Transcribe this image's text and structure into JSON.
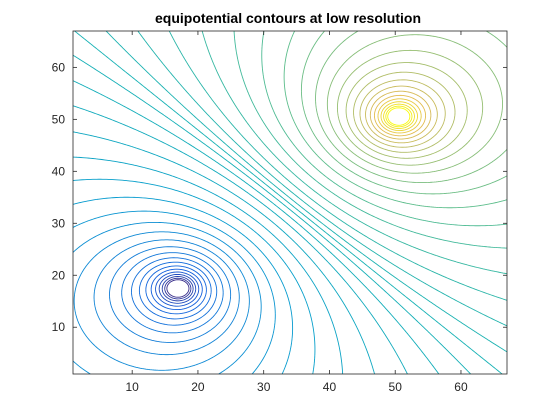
{
  "chart_data": {
    "type": "contour",
    "title": "equipotential contours at low resolution",
    "xlabel": "",
    "ylabel": "",
    "xlim": [
      1,
      67
    ],
    "ylim": [
      1,
      67
    ],
    "x_ticks": [
      10,
      20,
      30,
      40,
      50,
      60
    ],
    "y_ticks": [
      10,
      20,
      30,
      40,
      50,
      60
    ],
    "grid": false,
    "box": true,
    "colormap": "parula",
    "colors": {
      "low": "#1a2ad6",
      "mid": "#1aa6a6",
      "high": "#f9e30f",
      "axes": "#262626"
    },
    "charges": [
      {
        "sign": "negative",
        "x": 17,
        "y": 17.5,
        "strength": -1
      },
      {
        "sign": "positive",
        "x": 50.5,
        "y": 50.5,
        "strength": 1
      }
    ],
    "zero_contour": {
      "from": [
        1,
        67
      ],
      "to": [
        67,
        1
      ]
    },
    "contour_levels": [
      0.008,
      0.018,
      0.03,
      0.045,
      0.062,
      0.08,
      0.1,
      0.12,
      0.14,
      0.16,
      0.18,
      0.2,
      0.22,
      0.24,
      0.26,
      0.28,
      0.3,
      0.32,
      0.34,
      0.36,
      0.38,
      0.4
    ]
  }
}
